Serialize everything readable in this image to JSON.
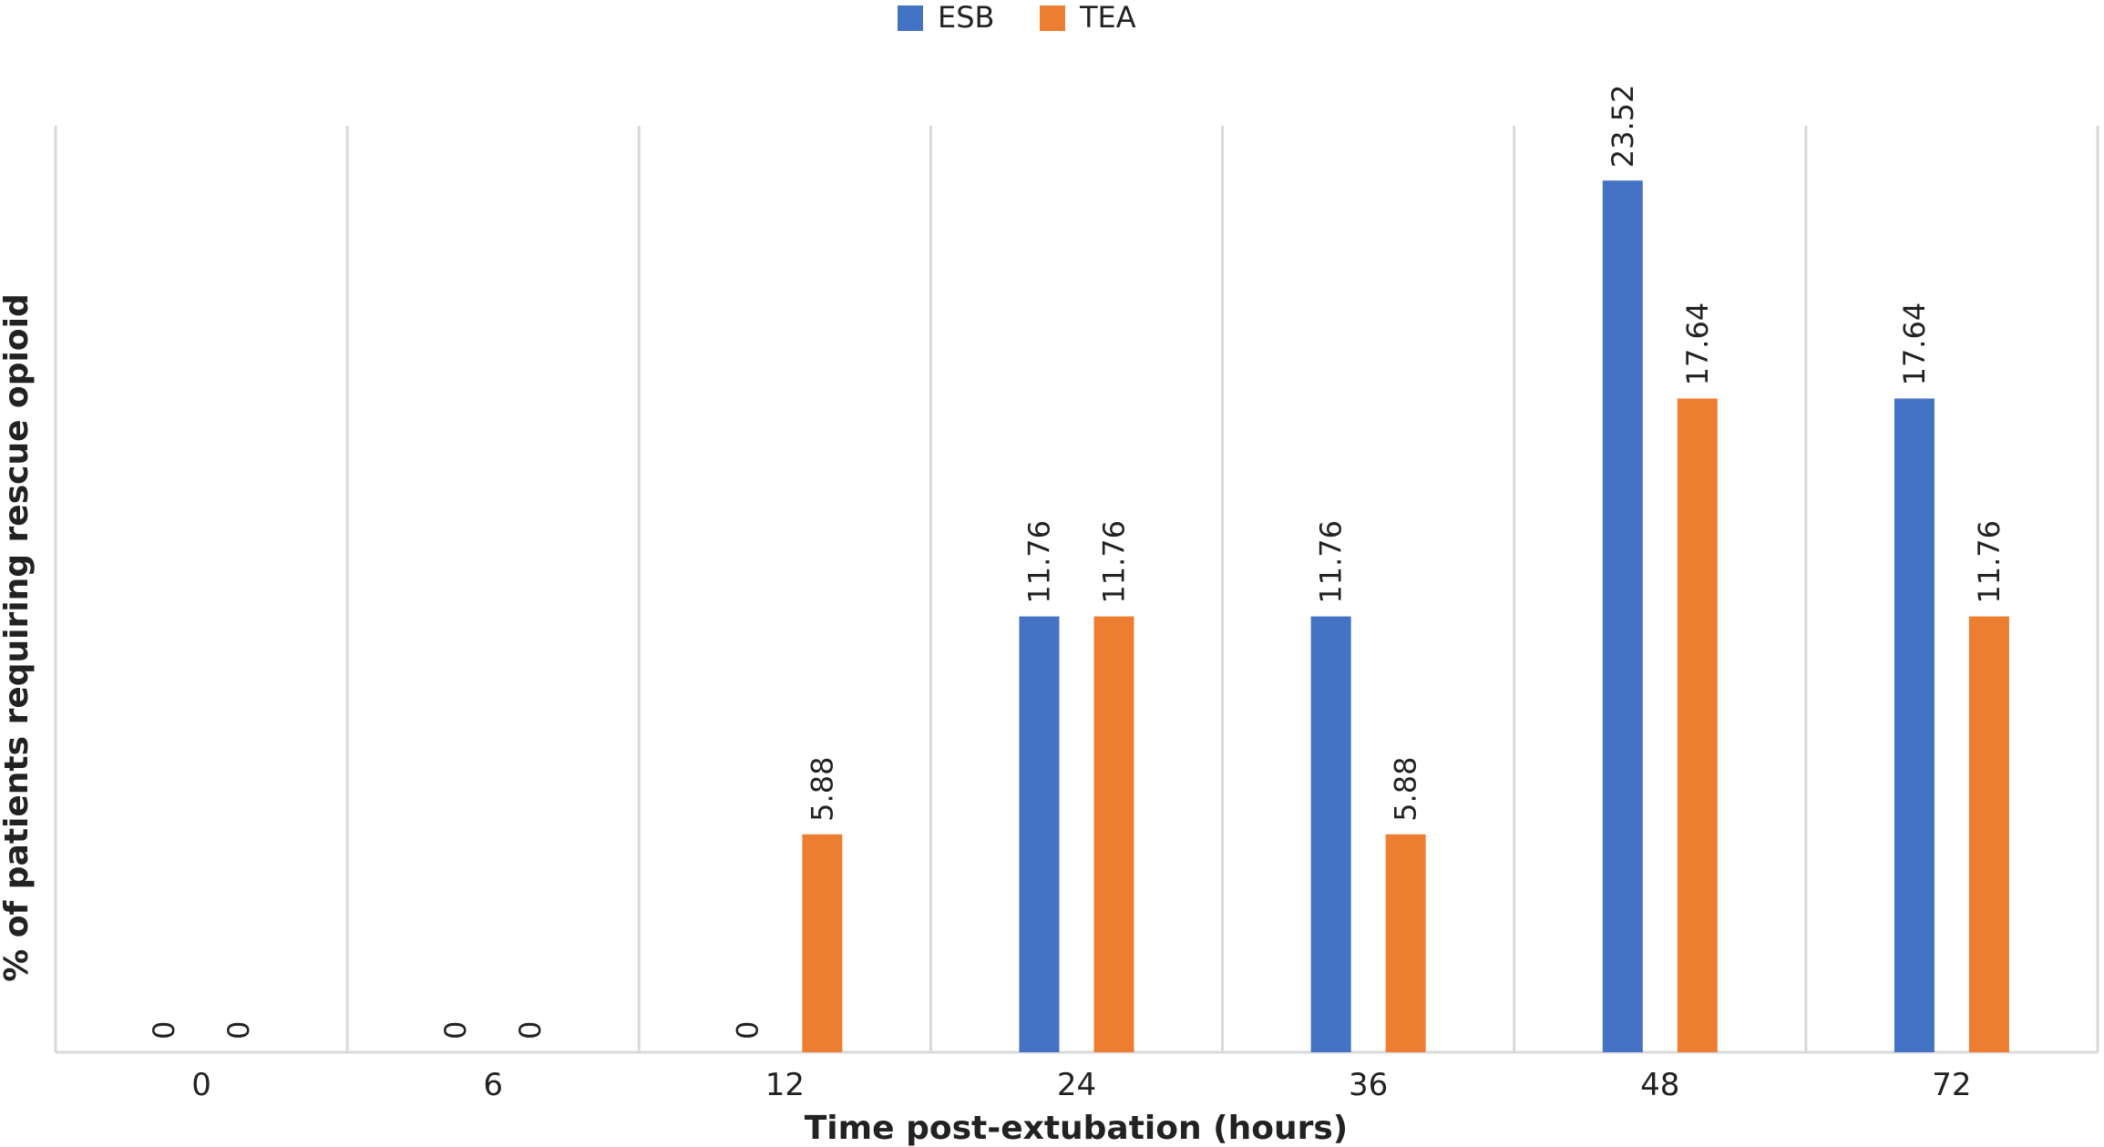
{
  "chart_data": {
    "type": "bar",
    "title": "",
    "xlabel": "Time post-extubation (hours)",
    "ylabel": "% of patients requiring rescue opioid",
    "categories": [
      "0",
      "6",
      "12",
      "24",
      "36",
      "48",
      "72"
    ],
    "series": [
      {
        "name": "ESB",
        "color": "#4472C4",
        "values": [
          0,
          0,
          0,
          11.76,
          11.76,
          23.52,
          17.64
        ]
      },
      {
        "name": "TEA",
        "color": "#ED7D31",
        "values": [
          0,
          0,
          5.88,
          11.76,
          5.88,
          17.64,
          11.76
        ]
      }
    ],
    "ylim": [
      0,
      25
    ],
    "grid": "vertical-category-dividers",
    "legend": "top-center",
    "data_labels": true
  }
}
